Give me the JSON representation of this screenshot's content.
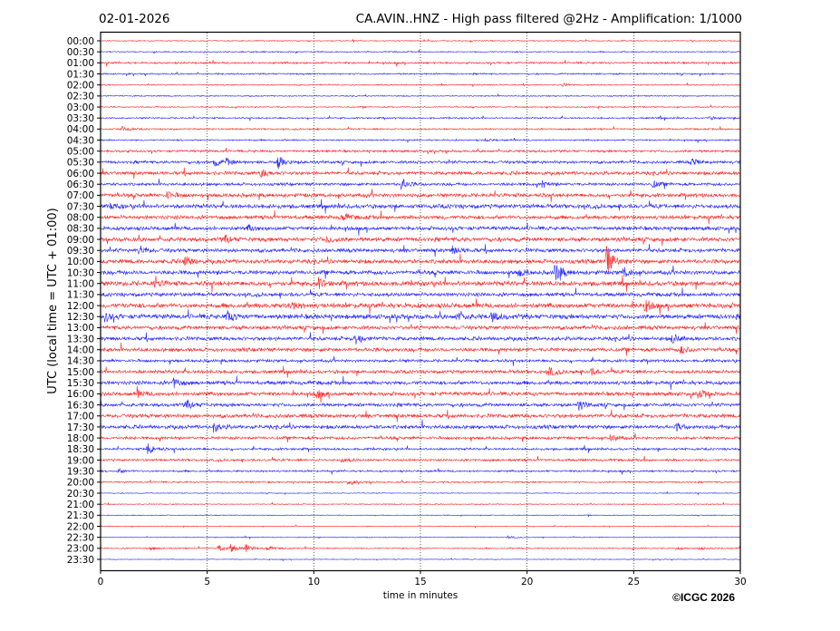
{
  "chart_data": {
    "type": "line",
    "date": "02-01-2026",
    "title": "CA.AVIN..HNZ - High pass filtered @2Hz - Amplification: 1/1000",
    "xlabel": "time in minutes",
    "ylabel": "UTC (local time = UTC + 01:00)",
    "xlim": [
      0,
      30
    ],
    "xticks": [
      "0",
      "5",
      "10",
      "15",
      "20",
      "25",
      "30"
    ],
    "grid": true,
    "copyright": "©ICGC 2026",
    "colors": [
      "#ff0000",
      "#0000ff"
    ],
    "rows": [
      {
        "label": "00:00",
        "noise": 0.05,
        "events": []
      },
      {
        "label": "00:30",
        "noise": 0.06,
        "events": []
      },
      {
        "label": "01:00",
        "noise": 0.1,
        "events": []
      },
      {
        "label": "01:30",
        "noise": 0.08,
        "events": []
      },
      {
        "label": "02:00",
        "noise": 0.06,
        "events": [
          [
            21.6,
            0.15
          ]
        ]
      },
      {
        "label": "02:30",
        "noise": 0.06,
        "events": []
      },
      {
        "label": "03:00",
        "noise": 0.06,
        "events": []
      },
      {
        "label": "03:30",
        "noise": 0.08,
        "events": [
          [
            28.5,
            0.15
          ]
        ]
      },
      {
        "label": "04:00",
        "noise": 0.08,
        "events": [
          [
            1.0,
            0.25
          ]
        ]
      },
      {
        "label": "04:30",
        "noise": 0.08,
        "events": [
          [
            18.0,
            0.12
          ]
        ]
      },
      {
        "label": "05:00",
        "noise": 0.12,
        "events": []
      },
      {
        "label": "05:30",
        "noise": 0.15,
        "events": [
          [
            5.3,
            0.35
          ],
          [
            5.9,
            0.3
          ],
          [
            8.3,
            0.55
          ],
          [
            27.7,
            0.3
          ]
        ]
      },
      {
        "label": "06:00",
        "noise": 0.18,
        "events": [
          [
            7.5,
            0.4
          ]
        ]
      },
      {
        "label": "06:30",
        "noise": 0.15,
        "events": [
          [
            14.1,
            0.5
          ],
          [
            20.7,
            0.3
          ],
          [
            25.9,
            0.3
          ]
        ]
      },
      {
        "label": "07:00",
        "noise": 0.2,
        "events": [
          [
            3.1,
            0.3
          ]
        ]
      },
      {
        "label": "07:30",
        "noise": 0.22,
        "events": [
          [
            0.5,
            0.25
          ]
        ]
      },
      {
        "label": "08:00",
        "noise": 0.2,
        "events": [
          [
            11.3,
            0.35
          ]
        ]
      },
      {
        "label": "08:30",
        "noise": 0.2,
        "events": [
          [
            6.9,
            0.25
          ]
        ]
      },
      {
        "label": "09:00",
        "noise": 0.22,
        "events": [
          [
            5.8,
            0.3
          ],
          [
            10.6,
            0.3
          ]
        ]
      },
      {
        "label": "09:30",
        "noise": 0.2,
        "events": [
          [
            1.8,
            0.45
          ],
          [
            16.5,
            0.35
          ]
        ]
      },
      {
        "label": "10:00",
        "noise": 0.22,
        "events": [
          [
            3.9,
            0.55
          ],
          [
            23.7,
            1.4
          ]
        ]
      },
      {
        "label": "10:30",
        "noise": 0.22,
        "events": [
          [
            19.6,
            0.35
          ],
          [
            21.3,
            0.9
          ],
          [
            24.5,
            0.45
          ]
        ]
      },
      {
        "label": "11:00",
        "noise": 0.25,
        "events": [
          [
            2.5,
            0.35
          ],
          [
            10.2,
            0.4
          ]
        ]
      },
      {
        "label": "11:30",
        "noise": 0.2,
        "events": []
      },
      {
        "label": "12:00",
        "noise": 0.25,
        "events": [
          [
            8.9,
            0.35
          ],
          [
            25.5,
            0.5
          ]
        ]
      },
      {
        "label": "12:30",
        "noise": 0.25,
        "events": [
          [
            0.2,
            0.4
          ],
          [
            5.9,
            0.55
          ],
          [
            16.7,
            0.35
          ],
          [
            18.3,
            0.45
          ]
        ]
      },
      {
        "label": "13:00",
        "noise": 0.2,
        "events": []
      },
      {
        "label": "13:30",
        "noise": 0.2,
        "events": [
          [
            11.9,
            0.6
          ],
          [
            26.8,
            0.45
          ]
        ]
      },
      {
        "label": "14:00",
        "noise": 0.2,
        "events": [
          [
            27.2,
            0.35
          ]
        ]
      },
      {
        "label": "14:30",
        "noise": 0.15,
        "events": []
      },
      {
        "label": "15:00",
        "noise": 0.18,
        "events": [
          [
            21.0,
            0.45
          ],
          [
            23.0,
            0.25
          ]
        ]
      },
      {
        "label": "15:30",
        "noise": 0.2,
        "events": [
          [
            3.4,
            0.45
          ]
        ]
      },
      {
        "label": "16:00",
        "noise": 0.2,
        "events": [
          [
            1.7,
            0.3
          ],
          [
            10.1,
            0.4
          ],
          [
            28.1,
            0.35
          ]
        ]
      },
      {
        "label": "16:30",
        "noise": 0.18,
        "events": [
          [
            4.0,
            0.4
          ],
          [
            22.4,
            0.45
          ]
        ]
      },
      {
        "label": "17:00",
        "noise": 0.2,
        "events": []
      },
      {
        "label": "17:30",
        "noise": 0.2,
        "events": [
          [
            5.3,
            0.45
          ],
          [
            27.0,
            0.3
          ]
        ]
      },
      {
        "label": "18:00",
        "noise": 0.15,
        "events": [
          [
            23.9,
            0.35
          ]
        ]
      },
      {
        "label": "18:30",
        "noise": 0.12,
        "events": [
          [
            2.2,
            0.55
          ]
        ]
      },
      {
        "label": "19:00",
        "noise": 0.12,
        "events": [
          [
            11.3,
            0.2
          ]
        ]
      },
      {
        "label": "19:30",
        "noise": 0.1,
        "events": [
          [
            0.8,
            0.2
          ]
        ]
      },
      {
        "label": "20:00",
        "noise": 0.08,
        "events": [
          [
            11.6,
            0.2
          ]
        ]
      },
      {
        "label": "20:30",
        "noise": 0.04,
        "events": []
      },
      {
        "label": "21:00",
        "noise": 0.05,
        "events": []
      },
      {
        "label": "21:30",
        "noise": 0.04,
        "events": []
      },
      {
        "label": "22:00",
        "noise": 0.04,
        "events": []
      },
      {
        "label": "22:30",
        "noise": 0.04,
        "events": [
          [
            19.1,
            0.12
          ]
        ]
      },
      {
        "label": "23:00",
        "noise": 0.06,
        "events": [
          [
            2.3,
            0.15
          ],
          [
            5.5,
            0.35
          ],
          [
            6.1,
            0.35
          ],
          [
            6.8,
            0.35
          ],
          [
            7.8,
            0.2
          ],
          [
            27.0,
            0.15
          ],
          [
            28.0,
            0.15
          ]
        ]
      },
      {
        "label": "23:30",
        "noise": 0.04,
        "events": []
      }
    ]
  }
}
